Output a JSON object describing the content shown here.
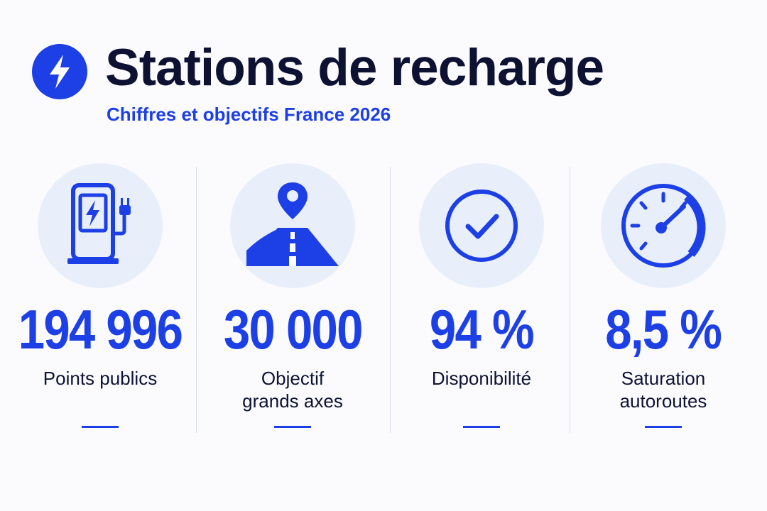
{
  "header": {
    "title": "Stations de recharge",
    "subtitle": "Chiffres et objectifs France 2026",
    "logo_icon": "lightning-bolt-icon"
  },
  "colors": {
    "accent": "#1d3fe6",
    "dark": "#0d1233",
    "icon_background": "#e8effb",
    "page_background": "#fbfbfd"
  },
  "stats": [
    {
      "value": "194 996",
      "label": "Points publics",
      "icon": "charging-station-icon"
    },
    {
      "value": "30 000",
      "label": "Objectif\ngrands axes",
      "icon": "highway-location-icon"
    },
    {
      "value": "94 %",
      "label": "Disponibilité",
      "icon": "check-circle-icon"
    },
    {
      "value": "8,5 %",
      "label": "Saturation\nautoroutes",
      "icon": "speedometer-icon"
    }
  ]
}
